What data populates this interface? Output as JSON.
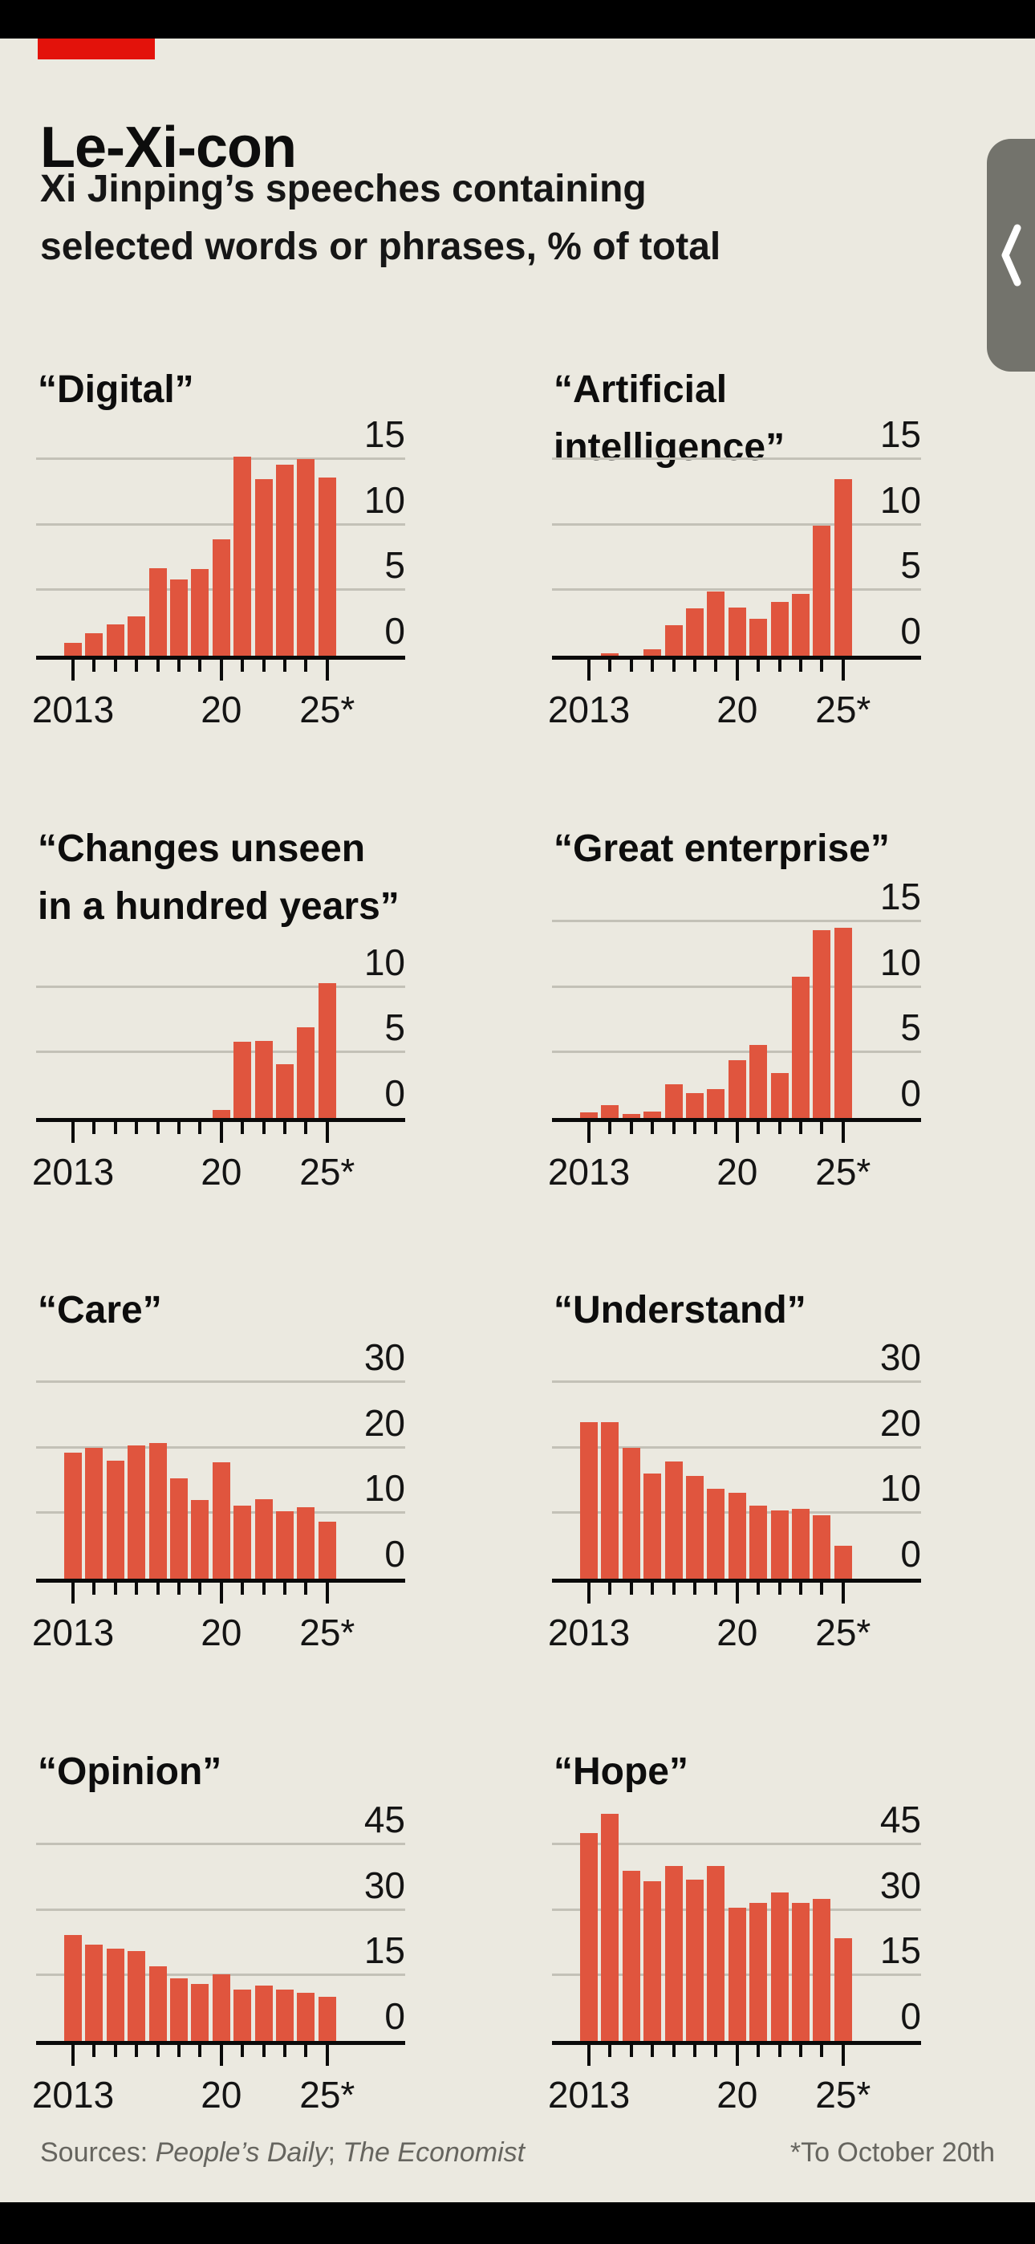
{
  "header": {
    "title": "Le-Xi-con",
    "subtitle_line1": "Xi Jinping’s speeches containing",
    "subtitle_line2": "selected words or phrases, % of total"
  },
  "footer": {
    "sources_prefix": "Sources: ",
    "source1": "People’s Daily",
    "separator": "; ",
    "source2": "The Economist",
    "note": "*To October 20th"
  },
  "overlay": {
    "icon": "chevron-left-icon"
  },
  "colors": {
    "background": "#EBE9E0",
    "bar": "#E0553E",
    "accent_red": "#E3120B",
    "text": "#111111",
    "grid": "#C3C1B7",
    "muted": "#66655F",
    "overlay_tab": "#73736C",
    "band": "#000000"
  },
  "chart_data": [
    {
      "type": "bar",
      "title": "“Digital”",
      "unit": "% of total",
      "years": [
        2013,
        2014,
        2015,
        2016,
        2017,
        2018,
        2019,
        2020,
        2021,
        2022,
        2023,
        2024,
        2025
      ],
      "values": [
        1.0,
        1.7,
        2.4,
        3.0,
        6.7,
        5.8,
        6.6,
        8.9,
        15.2,
        13.5,
        14.6,
        15.0,
        13.6
      ],
      "yticks": [
        15,
        10,
        5,
        0
      ],
      "ylim": [
        0,
        15
      ],
      "xticks": [
        {
          "label": "2013",
          "index": 0
        },
        {
          "label": "20",
          "index": 7
        },
        {
          "label": "25*",
          "index": 12
        }
      ]
    },
    {
      "type": "bar",
      "title": "“Artificial intelligence”",
      "unit": "% of total",
      "years": [
        2013,
        2014,
        2015,
        2016,
        2017,
        2018,
        2019,
        2020,
        2021,
        2022,
        2023,
        2024,
        2025
      ],
      "values": [
        0,
        0.2,
        0,
        0.5,
        2.3,
        3.6,
        4.9,
        3.7,
        2.8,
        4.1,
        4.7,
        9.9,
        13.5
      ],
      "yticks": [
        15,
        10,
        5,
        0
      ],
      "ylim": [
        0,
        15
      ],
      "xticks": [
        {
          "label": "2013",
          "index": 0
        },
        {
          "label": "20",
          "index": 7
        },
        {
          "label": "25*",
          "index": 12
        }
      ]
    },
    {
      "type": "bar",
      "title": "“Changes unseen\nin a hundred years”",
      "unit": "% of total",
      "years": [
        2013,
        2014,
        2015,
        2016,
        2017,
        2018,
        2019,
        2020,
        2021,
        2022,
        2023,
        2024,
        2025
      ],
      "values": [
        0,
        0,
        0,
        0,
        0,
        0,
        0,
        0.6,
        5.8,
        5.9,
        4.1,
        6.9,
        10.3
      ],
      "yticks": [
        10,
        5,
        0
      ],
      "ylim": [
        0,
        10
      ],
      "xticks": [
        {
          "label": "2013",
          "index": 0
        },
        {
          "label": "20",
          "index": 7
        },
        {
          "label": "25*",
          "index": 12
        }
      ]
    },
    {
      "type": "bar",
      "title": "“Great enterprise”",
      "unit": "% of total",
      "years": [
        2013,
        2014,
        2015,
        2016,
        2017,
        2018,
        2019,
        2020,
        2021,
        2022,
        2023,
        2024,
        2025
      ],
      "values": [
        0.4,
        1.0,
        0.3,
        0.5,
        2.6,
        1.9,
        2.2,
        4.4,
        5.6,
        3.4,
        10.8,
        14.3,
        14.5
      ],
      "yticks": [
        15,
        10,
        5,
        0
      ],
      "ylim": [
        0,
        15
      ],
      "xticks": [
        {
          "label": "2013",
          "index": 0
        },
        {
          "label": "20",
          "index": 7
        },
        {
          "label": "25*",
          "index": 12
        }
      ]
    },
    {
      "type": "bar",
      "title": "“Care”",
      "unit": "% of total",
      "years": [
        2013,
        2014,
        2015,
        2016,
        2017,
        2018,
        2019,
        2020,
        2021,
        2022,
        2023,
        2024,
        2025
      ],
      "values": [
        19.2,
        19.9,
        18.0,
        20.3,
        20.7,
        15.3,
        12.0,
        17.7,
        11.2,
        12.1,
        10.3,
        10.9,
        8.7
      ],
      "yticks": [
        30,
        20,
        10,
        0
      ],
      "ylim": [
        0,
        30
      ],
      "xticks": [
        {
          "label": "2013",
          "index": 0
        },
        {
          "label": "20",
          "index": 7
        },
        {
          "label": "25*",
          "index": 12
        }
      ]
    },
    {
      "type": "bar",
      "title": "“Understand”",
      "unit": "% of total",
      "years": [
        2013,
        2014,
        2015,
        2016,
        2017,
        2018,
        2019,
        2020,
        2021,
        2022,
        2023,
        2024,
        2025
      ],
      "values": [
        23.9,
        23.9,
        20.0,
        16.0,
        17.9,
        15.7,
        13.7,
        13.1,
        11.2,
        10.4,
        10.7,
        9.7,
        5.0
      ],
      "yticks": [
        30,
        20,
        10,
        0
      ],
      "ylim": [
        0,
        30
      ],
      "xticks": [
        {
          "label": "2013",
          "index": 0
        },
        {
          "label": "20",
          "index": 7
        },
        {
          "label": "25*",
          "index": 12
        }
      ]
    },
    {
      "type": "bar",
      "title": "“Opinion”",
      "unit": "% of total",
      "years": [
        2013,
        2014,
        2015,
        2016,
        2017,
        2018,
        2019,
        2020,
        2021,
        2022,
        2023,
        2024,
        2025
      ],
      "values": [
        24.2,
        22.0,
        21.1,
        20.6,
        17.0,
        14.3,
        13.0,
        15.3,
        11.7,
        12.7,
        11.8,
        11.1,
        10.1
      ],
      "yticks": [
        45,
        30,
        15,
        0
      ],
      "ylim": [
        0,
        45
      ],
      "xticks": [
        {
          "label": "2013",
          "index": 0
        },
        {
          "label": "20",
          "index": 7
        },
        {
          "label": "25*",
          "index": 12
        }
      ]
    },
    {
      "type": "bar",
      "title": "“Hope”",
      "unit": "% of total",
      "years": [
        2013,
        2014,
        2015,
        2016,
        2017,
        2018,
        2019,
        2020,
        2021,
        2022,
        2023,
        2024,
        2025
      ],
      "values": [
        47.5,
        52.0,
        39.0,
        36.5,
        40.0,
        37.0,
        40.0,
        30.5,
        31.5,
        34.0,
        31.5,
        32.5,
        23.5
      ],
      "yticks": [
        45,
        30,
        15,
        0
      ],
      "ylim": [
        0,
        52
      ],
      "xticks": [
        {
          "label": "2013",
          "index": 0
        },
        {
          "label": "20",
          "index": 7
        },
        {
          "label": "25*",
          "index": 12
        }
      ]
    }
  ]
}
